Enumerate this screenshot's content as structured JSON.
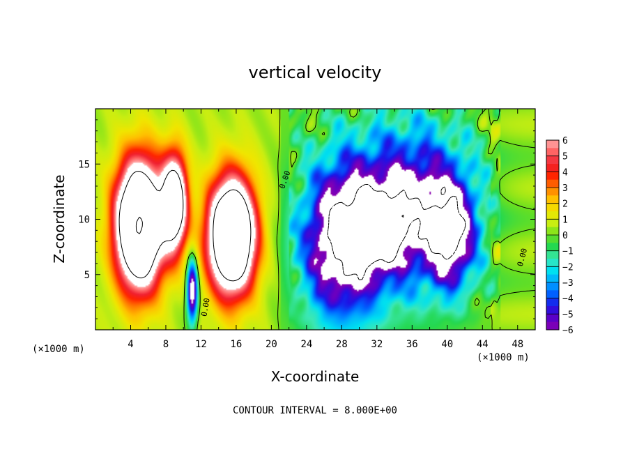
{
  "chart_data": {
    "type": "heatmap",
    "title": "vertical velocity",
    "xlabel": "X-coordinate",
    "ylabel": "Z-coordinate",
    "x_unit": "(×1000 m)",
    "xlim": [
      0,
      50
    ],
    "ylim": [
      0,
      20
    ],
    "x_ticks": [
      "4",
      "8",
      "12",
      "16",
      "20",
      "24",
      "28",
      "32",
      "36",
      "40",
      "44",
      "48"
    ],
    "y_ticks": [
      "5",
      "10",
      "15"
    ],
    "colorbar_ticks": [
      "6",
      "5",
      "4",
      "3",
      "2",
      "1",
      "0",
      "−1",
      "−2",
      "−3",
      "−4",
      "−5",
      "−6"
    ],
    "colorbar_range": [
      -6,
      6
    ],
    "contour_label": "0.00",
    "note": "CONTOUR INTERVAL = 8.000E+00",
    "features": [
      {
        "kind": "updraft",
        "x": 5.0,
        "z": 9.5,
        "sx": 2.6,
        "sz": 5.5,
        "amp": 16
      },
      {
        "kind": "updraft",
        "x": 9.0,
        "z": 11.5,
        "sx": 1.4,
        "sz": 4.2,
        "amp": 11
      },
      {
        "kind": "updraft",
        "x": 15.5,
        "z": 8.5,
        "sx": 2.6,
        "sz": 5.0,
        "amp": 15
      },
      {
        "kind": "downdraft",
        "x": 11.0,
        "z": 3.5,
        "sx": 0.6,
        "sz": 2.8,
        "amp": -8
      },
      {
        "kind": "downdraft",
        "x": 28.0,
        "z": 8.0,
        "sx": 4.5,
        "sz": 7.0,
        "amp": -8
      },
      {
        "kind": "downdraft",
        "x": 36.0,
        "z": 11.0,
        "sx": 6.5,
        "sz": 7.0,
        "amp": -7
      },
      {
        "kind": "downdraft",
        "x": 32.0,
        "z": 9.0,
        "sx": 3.0,
        "sz": 3.0,
        "amp": -5
      },
      {
        "kind": "downdraft",
        "x": 40.5,
        "z": 8.5,
        "sx": 2.5,
        "sz": 4.5,
        "amp": -6
      }
    ],
    "colors": {
      "above_max": "#ffffff",
      "below_min": "#ffffff",
      "scale": [
        "#8a00b0",
        "#5a00c8",
        "#1c14e6",
        "#0060ff",
        "#00a6ff",
        "#00e0f0",
        "#3ce8b4",
        "#24d850",
        "#6ee01e",
        "#c8ee12",
        "#f0e600",
        "#ffc000",
        "#ff7a00",
        "#ff2400",
        "#f02030",
        "#ff6464",
        "#ffaaaa"
      ]
    }
  }
}
